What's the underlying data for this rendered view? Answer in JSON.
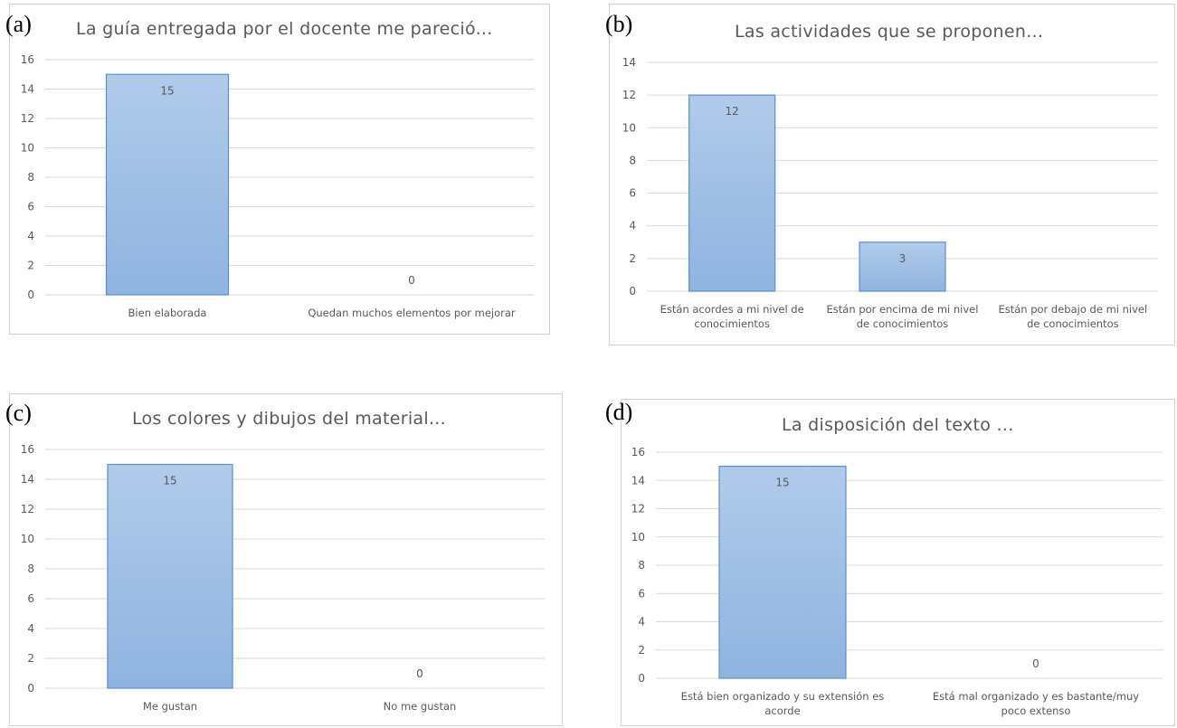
{
  "chart_data": [
    {
      "panel_label": "(a)",
      "type": "bar",
      "title": "La guía entregada por el docente me pareció...",
      "categories": [
        [
          "Bien elaborada"
        ],
        [
          "Quedan muchos elementos por mejorar"
        ]
      ],
      "values": [
        15,
        0
      ],
      "data_labels": [
        "15",
        "0"
      ],
      "ylim": [
        0,
        16
      ],
      "yticks": [
        0,
        2,
        4,
        6,
        8,
        10,
        12,
        14,
        16
      ],
      "grid": true,
      "legend": "none",
      "bar_color": "#9dbde6"
    },
    {
      "panel_label": "(b)",
      "type": "bar",
      "title": "Las actividades que se proponen...",
      "categories": [
        [
          "Están acordes a mi nivel de",
          "conocimientos"
        ],
        [
          "Están por encima de mi nivel",
          "de conocimientos"
        ],
        [
          "Están por debajo de mi nivel",
          "de conocimientos"
        ]
      ],
      "values": [
        12,
        3,
        0
      ],
      "data_labels": [
        "12",
        "3",
        ""
      ],
      "ylim": [
        0,
        14
      ],
      "yticks": [
        0,
        2,
        4,
        6,
        8,
        10,
        12,
        14
      ],
      "grid": true,
      "legend": "none",
      "bar_color": "#9dbde6"
    },
    {
      "panel_label": "(c)",
      "type": "bar",
      "title": "Los colores y dibujos del material...",
      "categories": [
        [
          "Me gustan"
        ],
        [
          "No me gustan"
        ]
      ],
      "values": [
        15,
        0
      ],
      "data_labels": [
        "15",
        "0"
      ],
      "ylim": [
        0,
        16
      ],
      "yticks": [
        0,
        2,
        4,
        6,
        8,
        10,
        12,
        14,
        16
      ],
      "grid": true,
      "legend": "none",
      "bar_color": "#9dbde6"
    },
    {
      "panel_label": "(d)",
      "type": "bar",
      "title": "La disposición del texto ...",
      "categories": [
        [
          "Está bien organizado y su extensión es",
          "acorde"
        ],
        [
          "Está mal organizado y es bastante/muy",
          "poco extenso"
        ]
      ],
      "values": [
        15,
        0
      ],
      "data_labels": [
        "15",
        "0"
      ],
      "ylim": [
        0,
        16
      ],
      "yticks": [
        0,
        2,
        4,
        6,
        8,
        10,
        12,
        14,
        16
      ],
      "grid": true,
      "legend": "none",
      "bar_color": "#9dbde6"
    }
  ]
}
